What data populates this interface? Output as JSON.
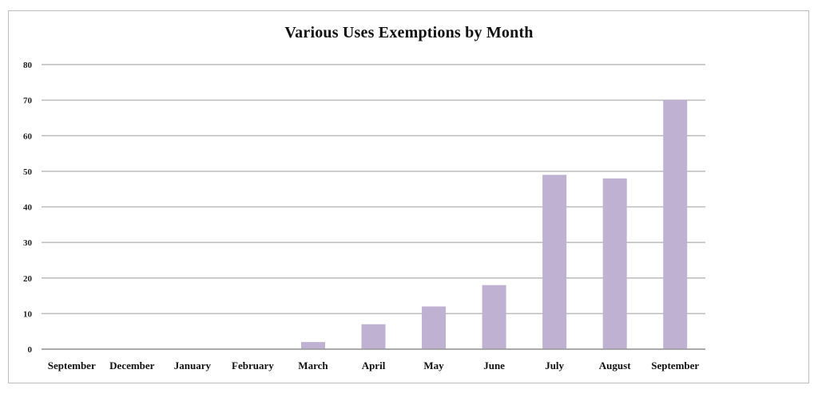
{
  "chart_data": {
    "type": "bar",
    "title": "Various Uses Exemptions by Month",
    "xlabel": "",
    "ylabel": "",
    "categories": [
      "September",
      "December",
      "January",
      "February",
      "March",
      "April",
      "May",
      "June",
      "July",
      "August",
      "September"
    ],
    "values": [
      0,
      0,
      0,
      0,
      2,
      7,
      12,
      18,
      49,
      48,
      70
    ],
    "ylim": [
      0,
      80
    ],
    "yticks": [
      0,
      10,
      20,
      30,
      40,
      50,
      60,
      70,
      80
    ],
    "grid": true,
    "legend": "none",
    "bar_color": "#bfb1d1",
    "grid_color": "#bcbcbc"
  }
}
